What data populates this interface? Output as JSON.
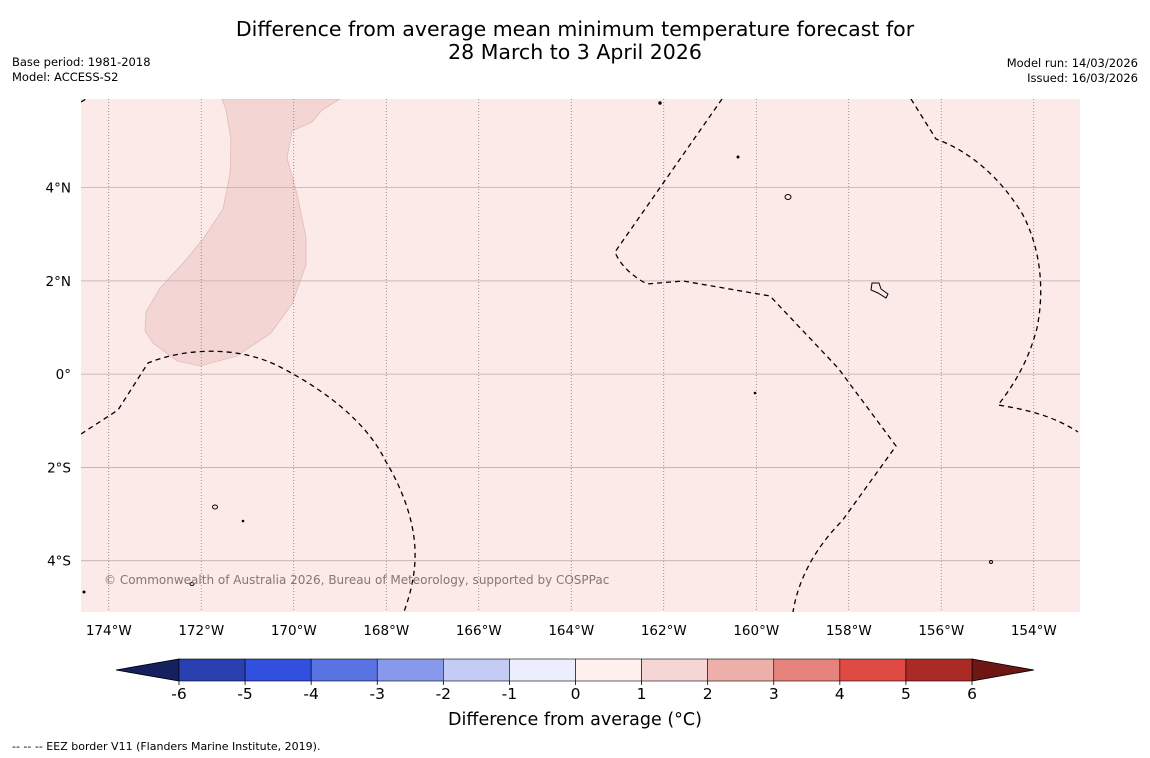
{
  "title": {
    "line1": "Difference from average mean minimum temperature forecast for",
    "line2": "28 March to 3 April 2026"
  },
  "meta": {
    "base_period": "Base period: 1981-2018",
    "model": "Model: ACCESS-S2",
    "model_run": "Model run: 14/03/2026",
    "issued": "Issued: 16/03/2026"
  },
  "map": {
    "background_color": "#fbeae8",
    "anomaly_region_color": "#f3d5d3",
    "copyright": "© Commonwealth of Australia 2026, Bureau of Meteorology, supported by COSPPac",
    "lon_labels": [
      "174°W",
      "172°W",
      "170°W",
      "168°W",
      "166°W",
      "164°W",
      "162°W",
      "160°W",
      "158°W",
      "156°W",
      "154°W"
    ],
    "lon_values": [
      -174,
      -172,
      -170,
      -168,
      -166,
      -164,
      -162,
      -160,
      -158,
      -156,
      -154
    ],
    "lat_labels": [
      "4°N",
      "2°N",
      "0°",
      "2°S",
      "4°S"
    ],
    "lat_values": [
      4,
      2,
      0,
      -2,
      -4
    ],
    "lon_range": [
      -174.6,
      -153.0
    ],
    "lat_range": [
      -5.1,
      5.9
    ]
  },
  "colorbar": {
    "label": "Difference from average (°C)",
    "ticks": [
      "-6",
      "-5",
      "-4",
      "-3",
      "-2",
      "-1",
      "0",
      "1",
      "2",
      "3",
      "4",
      "5",
      "6"
    ],
    "bounds": [
      -6,
      -5,
      -4,
      -3,
      -2,
      -1,
      0,
      1,
      2,
      3,
      4,
      5,
      6
    ],
    "colors": [
      "#2a3fb0",
      "#3150e0",
      "#5a73e2",
      "#8899eb",
      "#c4cbf5",
      "#eceefd",
      "#fdf0ee",
      "#f5d6d4",
      "#eeaeaa",
      "#e6837c",
      "#df4a42",
      "#ab2a25"
    ],
    "under_color": "#15205f",
    "over_color": "#6e1614"
  },
  "footnote": "--  --  -- EEZ border V11 (Flanders Marine Institute, 2019)."
}
